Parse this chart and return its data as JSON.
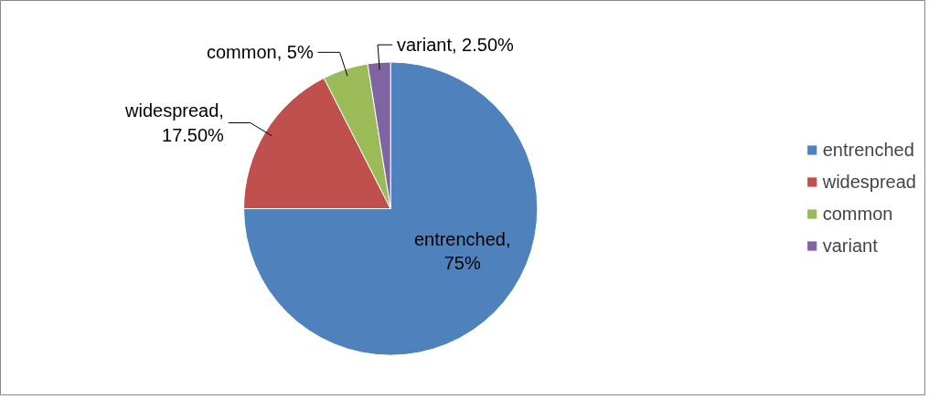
{
  "chart_data": {
    "type": "pie",
    "categories": [
      "entrenched",
      "widespread",
      "common",
      "variant"
    ],
    "values": [
      75,
      17.5,
      5,
      2.5
    ],
    "colors": [
      "#4f81bd",
      "#c0504d",
      "#9bbb59",
      "#8064a2"
    ],
    "value_labels": [
      "entrenched, 75%",
      "widespread, 17.50%",
      "common, 5%",
      "variant, 2.50%"
    ],
    "legend": "right"
  }
}
